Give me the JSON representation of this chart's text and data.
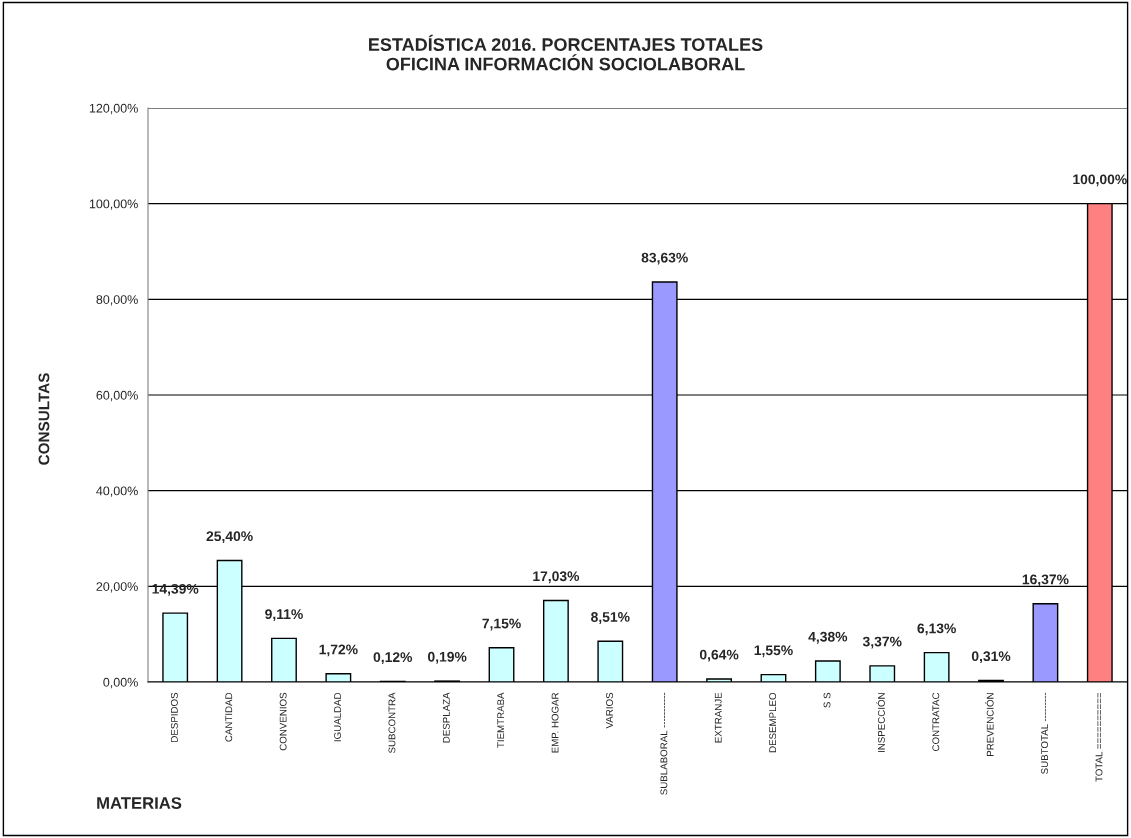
{
  "chart_data": {
    "type": "bar",
    "title": "ESTADÍSTICA 2016. PORCENTAJES TOTALES\nOFICINA INFORMACIÓN SOCIOLABORAL",
    "xlabel": "MATERIAS",
    "ylabel": "CONSULTAS",
    "categories": [
      "DESPIDOS",
      "CANTIDAD",
      "CONVENIOS",
      "IGUALDAD",
      "SUBCONTRA",
      "DESPLAZA",
      "TIEMTRABA",
      "EMP. HOGAR",
      "VARIOS",
      "SUBLABORAL -----------",
      "EXTRANJE",
      "DESEMPLEO",
      "S S",
      "INSPECCIÓN",
      "CONTRATAC",
      "PREVENCIÓN",
      "SUBTOTAL ---------",
      "TOTAL =========="
    ],
    "values": [
      14.39,
      25.4,
      9.11,
      1.72,
      0.12,
      0.19,
      7.15,
      17.03,
      8.51,
      83.63,
      0.64,
      1.55,
      4.38,
      3.37,
      6.13,
      0.31,
      16.37,
      100.0
    ],
    "value_labels": [
      "14,39%",
      "25,40%",
      "9,11%",
      "1,72%",
      "0,12%",
      "0,19%",
      "7,15%",
      "17,03%",
      "8,51%",
      "83,63%",
      "0,64%",
      "1,55%",
      "4,38%",
      "3,37%",
      "6,13%",
      "0,31%",
      "16,37%",
      "100,00%"
    ],
    "colors": [
      "#ccffff",
      "#ccffff",
      "#ccffff",
      "#ccffff",
      "#ccffff",
      "#ccffff",
      "#ccffff",
      "#ccffff",
      "#ccffff",
      "#9999ff",
      "#ccffff",
      "#ccffff",
      "#ccffff",
      "#ccffff",
      "#ccffff",
      "#ccffff",
      "#9999ff",
      "#ff8080"
    ],
    "ylim": [
      0,
      120
    ],
    "yticks": [
      {
        "value": 0,
        "label": "0,00%"
      },
      {
        "value": 20,
        "label": "20,00%"
      },
      {
        "value": 40,
        "label": "40,00%"
      },
      {
        "value": 60,
        "label": "60,00%"
      },
      {
        "value": 80,
        "label": "80,00%"
      },
      {
        "value": 100,
        "label": "100,00%"
      },
      {
        "value": 120,
        "label": "120,00%"
      }
    ],
    "grid": "y",
    "legend": false
  }
}
